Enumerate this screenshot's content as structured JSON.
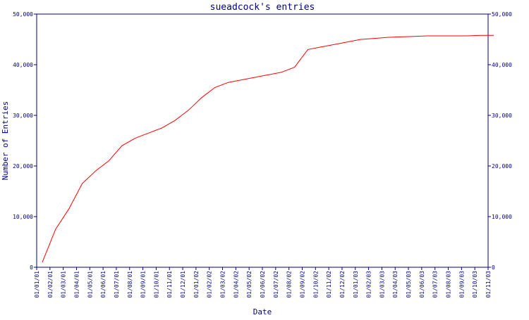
{
  "chart_data": {
    "type": "line",
    "title": "sueadcock's entries",
    "xlabel": "Date",
    "ylabel": "Number of Entries",
    "ylim": [
      0,
      50000
    ],
    "y_ticks": [
      0,
      10000,
      20000,
      30000,
      40000,
      50000
    ],
    "y_tick_labels": [
      "0",
      "10,000",
      "20,000",
      "30,000",
      "40,000",
      "50,000"
    ],
    "x_tick_labels": [
      "01/01/01",
      "01/02/01",
      "01/03/01",
      "01/04/01",
      "01/05/01",
      "01/06/01",
      "01/07/01",
      "01/08/01",
      "01/09/01",
      "01/10/01",
      "01/11/01",
      "01/12/01",
      "01/01/02",
      "01/02/02",
      "01/03/02",
      "01/04/02",
      "01/05/02",
      "01/06/02",
      "01/07/02",
      "01/08/02",
      "01/09/02",
      "01/10/02",
      "01/11/02",
      "01/12/02",
      "01/01/03",
      "01/02/03",
      "01/03/03",
      "01/04/03",
      "01/05/03",
      "01/06/03",
      "01/07/03",
      "01/08/03",
      "01/09/03",
      "01/10/03",
      "01/11/03"
    ],
    "right_axis": true,
    "grid": false,
    "colors": {
      "line": "#ff0000",
      "axis": "#000080",
      "text": "#000080"
    },
    "series": [
      {
        "x": [
          "01/01/01",
          "01/02/01",
          "01/03/01",
          "01/04/01",
          "01/05/01",
          "01/06/01",
          "01/07/01",
          "01/08/01",
          "01/09/01",
          "01/10/01",
          "01/11/01",
          "01/12/01",
          "01/01/02",
          "01/02/02",
          "01/03/02",
          "01/04/02",
          "01/05/02",
          "01/06/02",
          "01/07/02",
          "01/08/02",
          "01/09/02",
          "01/10/02",
          "01/11/02",
          "01/12/02",
          "01/01/03",
          "01/02/03",
          "01/03/03",
          "01/04/03",
          "01/05/03",
          "01/06/03",
          "01/07/03",
          "01/08/03",
          "01/09/03",
          "01/10/03",
          "01/11/03"
        ],
        "values": [
          1000,
          7500,
          11500,
          16500,
          19000,
          21000,
          24000,
          25500,
          26500,
          27500,
          29000,
          31000,
          33500,
          35500,
          36500,
          37000,
          37500,
          38000,
          38500,
          39500,
          43000,
          43500,
          44000,
          44500,
          45000,
          45200,
          45400,
          45500,
          45600,
          45700,
          45700,
          45700,
          45700,
          45800,
          45800
        ]
      }
    ]
  }
}
